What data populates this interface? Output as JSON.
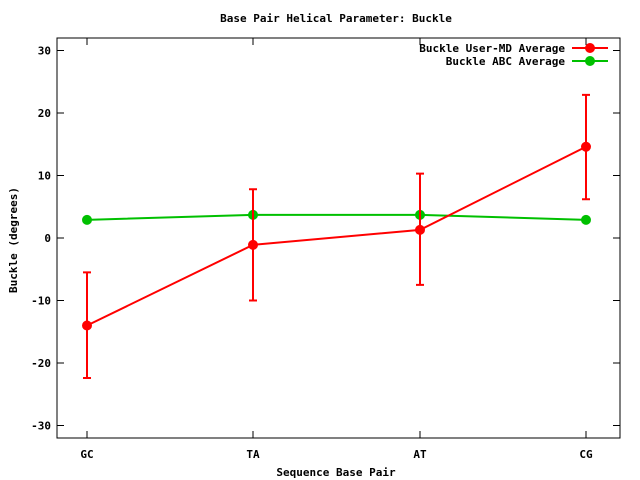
{
  "chart_data": {
    "type": "line",
    "title": "Base Pair Helical Parameter: Buckle",
    "xlabel": "Sequence Base Pair",
    "ylabel": "Buckle (degrees)",
    "categories": [
      "GC",
      "TA",
      "AT",
      "CG"
    ],
    "ylim": [
      -32,
      32
    ],
    "yticks": [
      -30,
      -20,
      -10,
      0,
      10,
      20,
      30
    ],
    "grid": false,
    "legend_position": "top-right",
    "series": [
      {
        "name": "Buckle User-MD Average",
        "color": "#ff0000",
        "values": [
          -14.0,
          -1.1,
          1.3,
          14.6
        ],
        "error_low": [
          -22.4,
          -10.0,
          -7.5,
          6.2
        ],
        "error_high": [
          -5.5,
          7.8,
          10.3,
          22.9
        ]
      },
      {
        "name": "Buckle ABC Average",
        "color": "#00c000",
        "values": [
          2.9,
          3.7,
          3.7,
          2.9
        ]
      }
    ]
  }
}
